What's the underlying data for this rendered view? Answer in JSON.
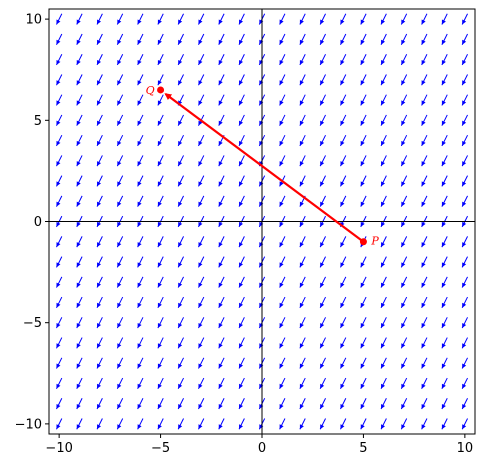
{
  "chart_data": {
    "type": "vector_field",
    "title": "",
    "xlabel": "",
    "ylabel": "",
    "xlim": [
      -10.5,
      10.5
    ],
    "ylim": [
      -10.5,
      10.5
    ],
    "xticks": [
      -10,
      -5,
      0,
      5,
      10
    ],
    "yticks": [
      -10,
      -5,
      0,
      5,
      10
    ],
    "xtick_labels": [
      "−10",
      "−5",
      "0",
      "5",
      "10"
    ],
    "ytick_labels": [
      "−10",
      "−5",
      "0",
      "5",
      "10"
    ],
    "field": {
      "color": "#0000ff",
      "grid_x": [
        -10,
        -9,
        -8,
        -7,
        -6,
        -5,
        -4,
        -3,
        -2,
        -1,
        0,
        1,
        2,
        3,
        4,
        5,
        6,
        7,
        8,
        9,
        10
      ],
      "grid_y": [
        -10,
        -9,
        -8,
        -7,
        -6,
        -5,
        -4,
        -3,
        -2,
        -1,
        0,
        1,
        2,
        3,
        4,
        5,
        6,
        7,
        8,
        9,
        10
      ],
      "direction": [
        -0.5,
        -1
      ]
    },
    "points": [
      {
        "label": "P",
        "x": 5,
        "y": -1
      },
      {
        "label": "Q",
        "x": -5,
        "y": 6.5
      }
    ],
    "arrow": {
      "from": [
        5,
        -1
      ],
      "to": [
        -5,
        6.5
      ],
      "color": "#ff0000"
    },
    "axes_lines": true,
    "grid": false
  },
  "colors": {
    "field": "#0000ff",
    "highlight": "#ff0000",
    "axes": "#000000"
  }
}
